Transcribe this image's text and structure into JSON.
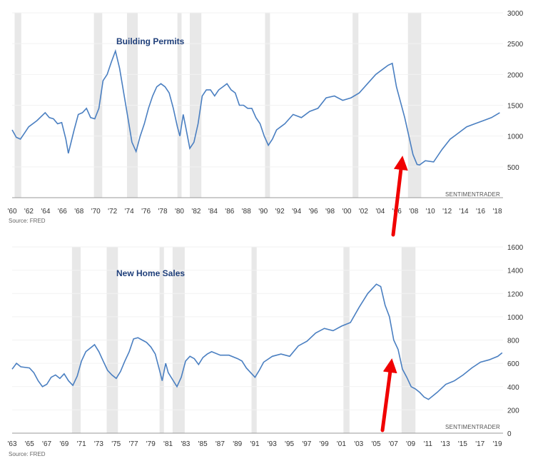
{
  "chart_data": [
    {
      "type": "line",
      "title": "Building Permits",
      "credit": "SENTIMENTRADER",
      "source": "Source: FRED",
      "ylim": [
        0,
        3000
      ],
      "yticks": [
        500,
        1000,
        1500,
        2000,
        2500,
        3000
      ],
      "xlim": [
        1960,
        2019.4
      ],
      "xticks": [
        "'60",
        "'62",
        "'64",
        "'66",
        "'68",
        "'70",
        "'72",
        "'74",
        "'76",
        "'78",
        "'80",
        "'82",
        "'84",
        "'86",
        "'88",
        "'90",
        "'92",
        "'94",
        "'96",
        "'98",
        "'00",
        "'02",
        "'04",
        "'06",
        "'08",
        "'10",
        "'12",
        "'14",
        "'16",
        "'18"
      ],
      "recessions": [
        [
          1960.3,
          1961.1
        ],
        [
          1969.9,
          1970.9
        ],
        [
          1973.9,
          1975.2
        ],
        [
          1980.0,
          1980.5
        ],
        [
          1981.5,
          1982.9
        ],
        [
          1990.6,
          1991.2
        ],
        [
          2001.2,
          2001.9
        ],
        [
          2007.9,
          2009.5
        ]
      ],
      "series": [
        {
          "x": [
            1960.0,
            1960.5,
            1961.0,
            1961.5,
            1962.0,
            1963.0,
            1964.0,
            1964.5,
            1965.0,
            1965.5,
            1966.0,
            1966.5,
            1966.8,
            1967.5,
            1968.0,
            1968.5,
            1969.0,
            1969.5,
            1970.0,
            1970.5,
            1971.0,
            1971.5,
            1972.0,
            1972.5,
            1973.0,
            1973.5,
            1974.0,
            1974.5,
            1975.0,
            1975.5,
            1976.0,
            1976.5,
            1977.0,
            1977.5,
            1978.0,
            1978.5,
            1979.0,
            1979.5,
            1980.0,
            1980.3,
            1980.7,
            1981.0,
            1981.5,
            1982.0,
            1982.5,
            1983.0,
            1983.5,
            1984.0,
            1984.5,
            1985.0,
            1985.5,
            1986.0,
            1986.5,
            1987.0,
            1987.5,
            1988.0,
            1988.5,
            1989.0,
            1989.5,
            1990.0,
            1990.5,
            1991.0,
            1991.5,
            1992.0,
            1992.5,
            1993.0,
            1994.0,
            1995.0,
            1996.0,
            1997.0,
            1998.0,
            1999.0,
            2000.0,
            2001.0,
            2002.0,
            2003.0,
            2004.0,
            2005.0,
            2005.5,
            2006.0,
            2006.5,
            2007.0,
            2007.5,
            2008.0,
            2008.5,
            2009.0,
            2009.3,
            2010.0,
            2011.0,
            2012.0,
            2013.0,
            2014.0,
            2015.0,
            2016.0,
            2017.0,
            2018.0,
            2019.0
          ],
          "y": [
            1100,
            980,
            950,
            1050,
            1150,
            1250,
            1380,
            1300,
            1280,
            1200,
            1220,
            950,
            720,
            1100,
            1350,
            1380,
            1450,
            1300,
            1280,
            1450,
            1900,
            2000,
            2200,
            2380,
            2100,
            1700,
            1300,
            900,
            750,
            1000,
            1200,
            1450,
            1650,
            1800,
            1850,
            1800,
            1700,
            1450,
            1150,
            1000,
            1350,
            1150,
            800,
            900,
            1200,
            1650,
            1750,
            1750,
            1650,
            1750,
            1800,
            1850,
            1750,
            1700,
            1500,
            1500,
            1450,
            1450,
            1300,
            1200,
            1000,
            850,
            950,
            1100,
            1150,
            1200,
            1350,
            1300,
            1400,
            1450,
            1620,
            1650,
            1580,
            1620,
            1700,
            1850,
            2000,
            2100,
            2150,
            2180,
            1800,
            1550,
            1300,
            1000,
            700,
            540,
            530,
            600,
            580,
            780,
            950,
            1050,
            1150,
            1200,
            1250,
            1300,
            1380
          ]
        }
      ]
    },
    {
      "type": "line",
      "title": "New Home Sales",
      "credit": "SENTIMENTRADER",
      "source": "Source: FRED",
      "ylim": [
        0,
        1600
      ],
      "yticks": [
        0,
        200,
        400,
        600,
        800,
        1000,
        1200,
        1400,
        1600
      ],
      "xlim": [
        1963,
        2019.6
      ],
      "xticks": [
        "'63",
        "'65",
        "'67",
        "'69",
        "'71",
        "'73",
        "'75",
        "'77",
        "'79",
        "'81",
        "'83",
        "'85",
        "'87",
        "'89",
        "'91",
        "'93",
        "'95",
        "'97",
        "'99",
        "'01",
        "'03",
        "'05",
        "'07",
        "'09",
        "'11",
        "'13",
        "'15",
        "'17",
        "'19"
      ],
      "recessions": [
        [
          1969.9,
          1970.9
        ],
        [
          1973.9,
          1975.2
        ],
        [
          1980.0,
          1980.5
        ],
        [
          1981.5,
          1982.9
        ],
        [
          1990.6,
          1991.2
        ],
        [
          2001.2,
          2001.9
        ],
        [
          2007.9,
          2009.5
        ]
      ],
      "series": [
        {
          "x": [
            1963.0,
            1963.5,
            1964.0,
            1965.0,
            1965.5,
            1966.0,
            1966.5,
            1967.0,
            1967.5,
            1968.0,
            1968.5,
            1969.0,
            1969.5,
            1970.0,
            1970.5,
            1971.0,
            1971.5,
            1972.0,
            1972.5,
            1973.0,
            1973.5,
            1974.0,
            1974.5,
            1975.0,
            1975.5,
            1976.0,
            1976.5,
            1977.0,
            1977.5,
            1978.0,
            1978.5,
            1979.0,
            1979.5,
            1980.0,
            1980.3,
            1980.7,
            1981.0,
            1981.5,
            1982.0,
            1982.5,
            1983.0,
            1983.5,
            1984.0,
            1984.5,
            1985.0,
            1985.5,
            1986.0,
            1987.0,
            1988.0,
            1989.0,
            1989.5,
            1990.0,
            1990.5,
            1991.0,
            1991.5,
            1992.0,
            1993.0,
            1994.0,
            1995.0,
            1996.0,
            1997.0,
            1998.0,
            1999.0,
            2000.0,
            2001.0,
            2002.0,
            2003.0,
            2004.0,
            2005.0,
            2005.5,
            2006.0,
            2006.5,
            2007.0,
            2007.5,
            2008.0,
            2008.5,
            2009.0,
            2009.5,
            2010.0,
            2010.5,
            2011.0,
            2012.0,
            2013.0,
            2014.0,
            2015.0,
            2016.0,
            2017.0,
            2018.0,
            2019.0,
            2019.5
          ],
          "y": [
            550,
            600,
            570,
            560,
            520,
            450,
            400,
            420,
            480,
            500,
            470,
            510,
            450,
            410,
            490,
            620,
            700,
            730,
            760,
            700,
            620,
            540,
            500,
            470,
            530,
            620,
            700,
            810,
            820,
            800,
            780,
            740,
            680,
            540,
            450,
            600,
            520,
            460,
            400,
            480,
            620,
            660,
            640,
            590,
            650,
            680,
            700,
            670,
            670,
            640,
            620,
            560,
            520,
            480,
            540,
            610,
            660,
            680,
            660,
            750,
            790,
            860,
            900,
            880,
            920,
            950,
            1080,
            1200,
            1280,
            1260,
            1100,
            1000,
            800,
            720,
            550,
            480,
            400,
            380,
            350,
            310,
            290,
            350,
            420,
            450,
            500,
            560,
            610,
            630,
            660,
            690
          ]
        }
      ]
    }
  ]
}
